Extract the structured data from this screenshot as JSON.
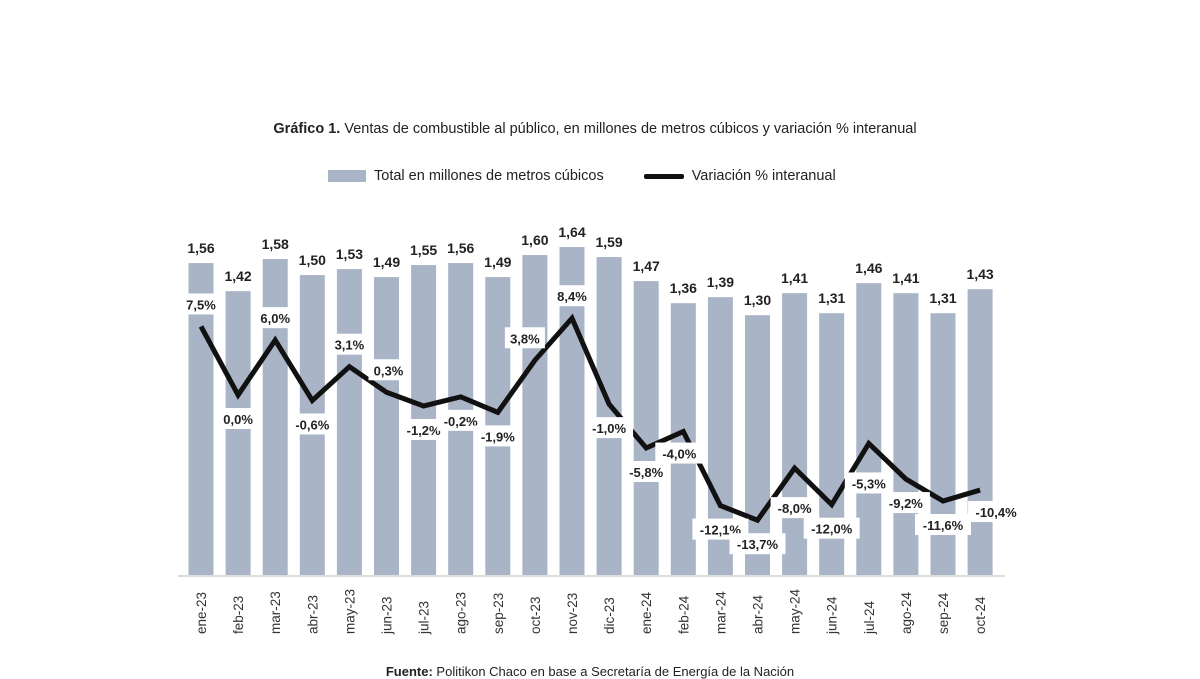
{
  "chart_data": {
    "type": "bar+line",
    "title_prefix": "Gráfico 1.",
    "title": "Ventas de combustible al público, en millones de metros cúbicos y variación % interanual",
    "categories": [
      "ene-23",
      "feb-23",
      "mar-23",
      "abr-23",
      "may-23",
      "jun-23",
      "jul-23",
      "ago-23",
      "sep-23",
      "oct-23",
      "nov-23",
      "dic-23",
      "ene-24",
      "feb-24",
      "mar-24",
      "abr-24",
      "may-24",
      "jun-24",
      "jul-24",
      "ago-24",
      "sep-24",
      "oct-24"
    ],
    "series": [
      {
        "name": "Total en millones de metros cúbicos",
        "type": "bar",
        "color": "#a9b4c6",
        "values": [
          1.56,
          1.42,
          1.58,
          1.5,
          1.53,
          1.49,
          1.55,
          1.56,
          1.49,
          1.6,
          1.64,
          1.59,
          1.47,
          1.36,
          1.39,
          1.3,
          1.41,
          1.31,
          1.46,
          1.41,
          1.31,
          1.43
        ],
        "labels": [
          "1,56",
          "1,42",
          "1,58",
          "1,50",
          "1,53",
          "1,49",
          "1,55",
          "1,56",
          "1,49",
          "1,60",
          "1,64",
          "1,59",
          "1,47",
          "1,36",
          "1,39",
          "1,30",
          "1,41",
          "1,31",
          "1,46",
          "1,41",
          "1,31",
          "1,43"
        ]
      },
      {
        "name": "Variación % interanual",
        "type": "line",
        "color": "#111111",
        "values": [
          7.5,
          0.0,
          6.0,
          -0.6,
          3.1,
          0.3,
          -1.2,
          -0.2,
          -1.9,
          3.8,
          8.4,
          -1.0,
          -5.8,
          -4.0,
          -12.1,
          -13.7,
          -8.0,
          -12.0,
          -5.3,
          -9.2,
          -11.6,
          -10.4
        ],
        "labels": [
          "7,5%",
          "0,0%",
          "6,0%",
          "-0,6%",
          "3,1%",
          "0,3%",
          "-1,2%",
          "-0,2%",
          "-1,9%",
          "3,8%",
          "8,4%",
          "-1,0%",
          "-5,8%",
          "-4,0%",
          "-12,1%",
          "-13,7%",
          "-8,0%",
          "-12,0%",
          "-5,3%",
          "-9,2%",
          "-11,6%",
          "-10,4%"
        ]
      }
    ],
    "legend": "top",
    "grid": false,
    "source_label": "Fuente:",
    "source": "Politikon Chaco en base a Secretaría de Energía de la Nación"
  }
}
